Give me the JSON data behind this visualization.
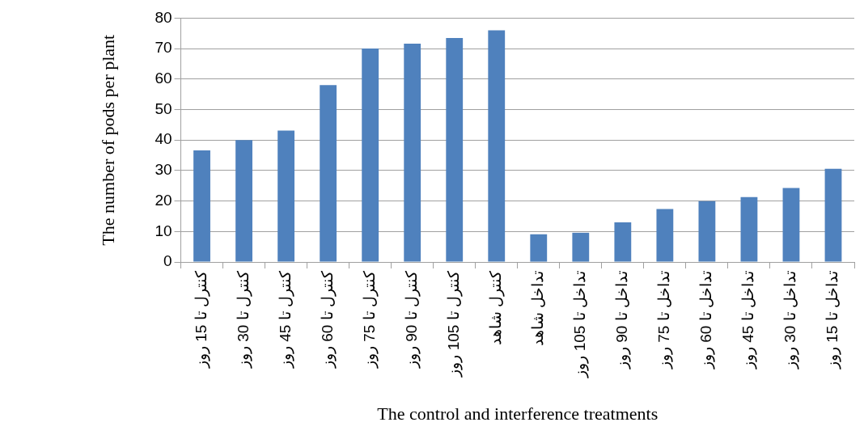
{
  "chart_data": {
    "type": "bar",
    "xlabel": "The control and interference treatments",
    "ylabel": "The number of pods per plant",
    "categories": [
      "کنترل تا 15 روز",
      "کنترل تا 30 روز",
      "کنترل تا 45 روز",
      "کنترل تا 60 روز",
      "کنترل تا 75 روز",
      "کنترل تا 90 روز",
      "کنترل تا 105 روز",
      "کنترل شاهد",
      "تداخل شاهد",
      "تداخل تا 105 روز",
      "تداخل تا 90 روز",
      "تداخل تا 75 روز",
      "تداخل تا 60 روز",
      "تداخل تا 45 روز",
      "تداخل تا 30 روز",
      "تداخل تا 15 روز"
    ],
    "values": [
      36.6,
      40,
      43.1,
      58,
      70,
      71.6,
      73.5,
      76,
      9.1,
      9.6,
      13,
      17.4,
      20,
      21.3,
      24.3,
      30.6
    ],
    "color": "#4f81bd",
    "ylim": [
      0,
      80
    ],
    "yticks": [
      0,
      10,
      20,
      30,
      40,
      50,
      60,
      70,
      80
    ],
    "grid": "y",
    "legend": false
  }
}
